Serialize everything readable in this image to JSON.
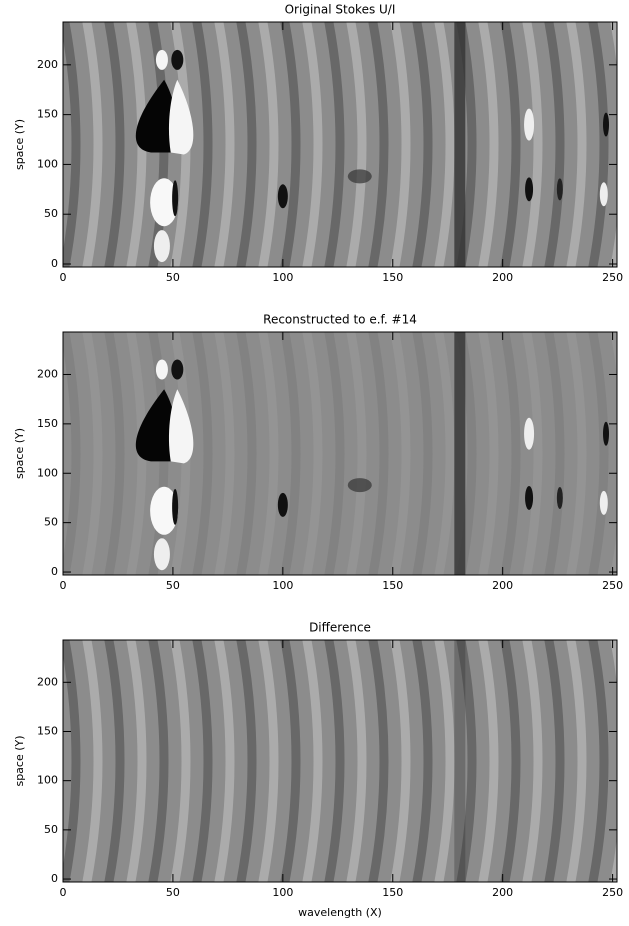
{
  "chart_data": [
    {
      "type": "image",
      "title": "Original Stokes U/I",
      "ylabel": "space (Y)",
      "xlim": [
        0,
        252
      ],
      "ylim": [
        -3,
        243
      ],
      "xticks": [
        0,
        50,
        100,
        150,
        200,
        250
      ],
      "yticks": [
        0,
        50,
        100,
        150,
        200
      ]
    },
    {
      "type": "image",
      "title": "Reconstructed to e.f. #14",
      "ylabel": "space (Y)",
      "xlim": [
        0,
        252
      ],
      "ylim": [
        -3,
        243
      ],
      "xticks": [
        0,
        50,
        100,
        150,
        200,
        250
      ],
      "yticks": [
        0,
        50,
        100,
        150,
        200
      ]
    },
    {
      "type": "image",
      "title": "Difference",
      "ylabel": "space (Y)",
      "xlabel": "wavelength (X)",
      "xlim": [
        0,
        252
      ],
      "ylim": [
        -3,
        243
      ],
      "xticks": [
        0,
        50,
        100,
        150,
        200,
        250
      ],
      "yticks": [
        0,
        50,
        100,
        150,
        200
      ]
    }
  ]
}
